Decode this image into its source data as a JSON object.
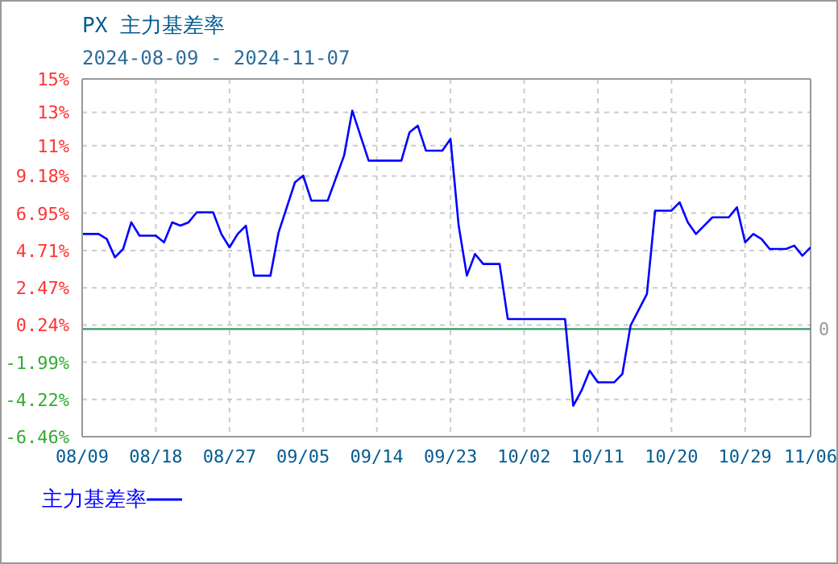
{
  "chart_data": {
    "type": "line",
    "title": "PX 主力基差率",
    "subtitle": "2024-08-09 - 2024-11-07",
    "x": [
      "2024-08-09",
      "2024-08-11",
      "2024-08-12",
      "2024-08-13",
      "2024-08-14",
      "2024-08-15",
      "2024-08-16",
      "2024-08-18",
      "2024-08-19",
      "2024-08-20",
      "2024-08-21",
      "2024-08-22",
      "2024-08-23",
      "2024-08-25",
      "2024-08-26",
      "2024-08-27",
      "2024-08-28",
      "2024-08-29",
      "2024-08-30",
      "2024-09-01",
      "2024-09-02",
      "2024-09-04",
      "2024-09-05",
      "2024-09-06",
      "2024-09-08",
      "2024-09-10",
      "2024-09-11",
      "2024-09-13",
      "2024-09-17",
      "2024-09-18",
      "2024-09-19",
      "2024-09-20",
      "2024-09-22",
      "2024-09-23",
      "2024-09-24",
      "2024-09-25",
      "2024-09-26",
      "2024-09-27",
      "2024-09-29",
      "2024-09-30",
      "2024-10-07",
      "2024-10-08",
      "2024-10-09",
      "2024-10-10",
      "2024-10-11",
      "2024-10-13",
      "2024-10-14",
      "2024-10-15",
      "2024-10-17",
      "2024-10-18",
      "2024-10-20",
      "2024-10-21",
      "2024-10-22",
      "2024-10-23",
      "2024-10-25",
      "2024-10-27",
      "2024-10-28",
      "2024-10-29",
      "2024-10-30",
      "2024-10-31",
      "2024-11-01",
      "2024-11-03",
      "2024-11-04",
      "2024-11-05",
      "2024-11-06"
    ],
    "series": [
      {
        "name": "主力基差率",
        "color": "#0000ff",
        "values": [
          5.7,
          5.7,
          5.4,
          4.3,
          4.8,
          6.4,
          5.6,
          5.6,
          5.2,
          6.4,
          6.2,
          6.4,
          7.0,
          7.0,
          5.7,
          4.9,
          5.7,
          6.2,
          3.2,
          3.2,
          5.8,
          8.8,
          9.2,
          7.7,
          7.7,
          10.4,
          13.1,
          10.1,
          10.1,
          11.8,
          12.2,
          10.7,
          10.7,
          11.4,
          6.2,
          3.2,
          4.5,
          3.9,
          3.9,
          0.6,
          0.6,
          -4.6,
          -3.7,
          -2.5,
          -3.2,
          -3.2,
          -2.7,
          0.2,
          2.1,
          7.1,
          7.1,
          7.6,
          6.4,
          5.7,
          6.7,
          6.7,
          7.3,
          5.2,
          5.7,
          5.4,
          4.8,
          4.8,
          5.0,
          4.4,
          4.9
        ]
      }
    ],
    "xlim": [
      "2024-08-09",
      "2024-11-06"
    ],
    "xticks": [
      {
        "value": "2024-08-09",
        "label": "08/09"
      },
      {
        "value": "2024-08-18",
        "label": "08/18"
      },
      {
        "value": "2024-08-27",
        "label": "08/27"
      },
      {
        "value": "2024-09-05",
        "label": "09/05"
      },
      {
        "value": "2024-09-14",
        "label": "09/14"
      },
      {
        "value": "2024-09-23",
        "label": "09/23"
      },
      {
        "value": "2024-10-02",
        "label": "10/02"
      },
      {
        "value": "2024-10-11",
        "label": "10/11"
      },
      {
        "value": "2024-10-20",
        "label": "10/20"
      },
      {
        "value": "2024-10-29",
        "label": "10/29"
      },
      {
        "value": "2024-11-06",
        "label": "11/06"
      }
    ],
    "ylim": [
      -6.46,
      15
    ],
    "yticks": [
      {
        "value": -6.46,
        "label": "-6.46%"
      },
      {
        "value": -4.22,
        "label": "-4.22%"
      },
      {
        "value": -1.99,
        "label": "-1.99%"
      },
      {
        "value": 0.24,
        "label": "0.24%"
      },
      {
        "value": 2.47,
        "label": "2.47%"
      },
      {
        "value": 4.71,
        "label": "4.71%"
      },
      {
        "value": 6.95,
        "label": "6.95%"
      },
      {
        "value": 9.18,
        "label": "9.18%"
      },
      {
        "value": 11,
        "label": "11%"
      },
      {
        "value": 13,
        "label": "13%"
      },
      {
        "value": 15,
        "label": "15%"
      }
    ],
    "ref_lines": [
      {
        "axis": "y",
        "value": 0,
        "label": "0",
        "color": "#339966"
      }
    ],
    "grid": true,
    "legend": "bottom left",
    "marker": "none",
    "line_style": "solid"
  }
}
